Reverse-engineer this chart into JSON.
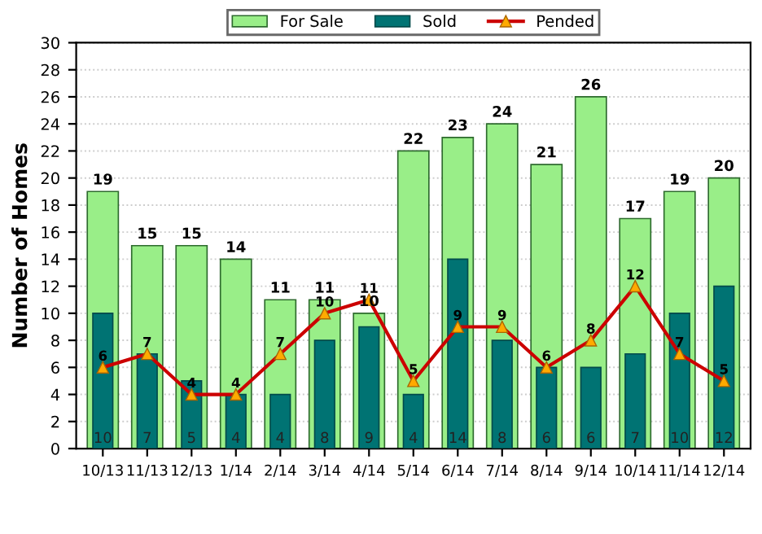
{
  "chart_data": {
    "type": "bar",
    "ylabel": "Number of Homes",
    "categories": [
      "10/13",
      "11/13",
      "12/13",
      "1/14",
      "2/14",
      "3/14",
      "4/14",
      "5/14",
      "6/14",
      "7/14",
      "8/14",
      "9/14",
      "10/14",
      "11/14",
      "12/14"
    ],
    "series": [
      {
        "name": "For Sale",
        "color": "#99ee88",
        "values": [
          19,
          15,
          15,
          14,
          11,
          11,
          10,
          22,
          23,
          24,
          21,
          26,
          17,
          19,
          20
        ]
      },
      {
        "name": "Sold",
        "color": "#007373",
        "values": [
          10,
          7,
          5,
          4,
          4,
          8,
          9,
          4,
          14,
          8,
          6,
          6,
          7,
          10,
          12
        ]
      },
      {
        "name": "Pended",
        "type": "line",
        "color": "#cc0000",
        "marker": "triangle",
        "values": [
          6,
          7,
          4,
          4,
          7,
          10,
          11,
          5,
          9,
          9,
          6,
          8,
          12,
          7,
          5
        ]
      }
    ],
    "ylim": [
      0,
      30
    ],
    "yticks": [
      0,
      2,
      4,
      6,
      8,
      10,
      12,
      14,
      16,
      18,
      20,
      22,
      24,
      26,
      28,
      30
    ],
    "grid": "y",
    "legend": "top",
    "data_labels": true
  }
}
